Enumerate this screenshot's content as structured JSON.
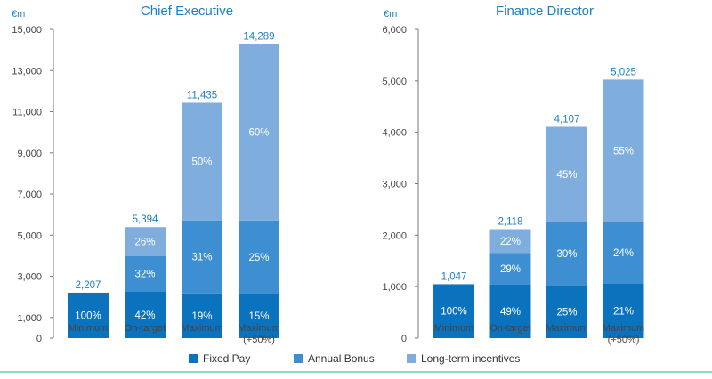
{
  "colors": {
    "fixed": "#0b72be",
    "bonus": "#3e8fd2",
    "lti": "#7eadde",
    "title": "#1b7fc3",
    "axis": "#777777",
    "rule": "#3ec3a4"
  },
  "legend": [
    {
      "label": "Fixed Pay",
      "color": "#0b72be"
    },
    {
      "label": "Annual Bonus",
      "color": "#3e8fd2"
    },
    {
      "label": "Long-term incentives",
      "color": "#7eadde"
    }
  ],
  "chart_data": [
    {
      "type": "bar",
      "stacked": true,
      "title": "Chief Executive",
      "unit": "€m",
      "ylim": [
        0,
        15000
      ],
      "yticks": [
        "0",
        "1,000",
        "3,000",
        "5,000",
        "7,000",
        "9,000",
        "11,000",
        "13,000",
        "15,000"
      ],
      "ytick_values": [
        0,
        1000,
        3000,
        5000,
        7000,
        9000,
        11000,
        13000,
        15000
      ],
      "categories": [
        {
          "line1": "Minimum",
          "line2": ""
        },
        {
          "line1": "On-target",
          "line2": ""
        },
        {
          "line1": "Maximum",
          "line2": ""
        },
        {
          "line1": "Maximum",
          "line2": "(+50%)"
        }
      ],
      "totals": [
        "2,207",
        "5,394",
        "11,435",
        "14,289"
      ],
      "total_values": [
        2207,
        5394,
        11435,
        14289
      ],
      "series": [
        {
          "name": "Fixed Pay",
          "values": [
            2207,
            2265,
            2173,
            2143
          ],
          "labels": [
            "100%",
            "42%",
            "19%",
            "15%"
          ]
        },
        {
          "name": "Annual Bonus",
          "values": [
            0,
            1726,
            3545,
            3572
          ],
          "labels": [
            "",
            "32%",
            "31%",
            "25%"
          ]
        },
        {
          "name": "Long-term incentives",
          "values": [
            0,
            1403,
            5717,
            8574
          ],
          "labels": [
            "",
            "26%",
            "50%",
            "60%"
          ]
        }
      ]
    },
    {
      "type": "bar",
      "stacked": true,
      "title": "Finance Director",
      "unit": "€m",
      "ylim": [
        0,
        6000
      ],
      "yticks": [
        "0",
        "1,000",
        "2,000",
        "3,000",
        "4,000",
        "5,000",
        "6,000"
      ],
      "ytick_values": [
        0,
        1000,
        2000,
        3000,
        4000,
        5000,
        6000
      ],
      "categories": [
        {
          "line1": "Minimum",
          "line2": ""
        },
        {
          "line1": "On-target",
          "line2": ""
        },
        {
          "line1": "Maximum",
          "line2": ""
        },
        {
          "line1": "Maximum",
          "line2": "(+50%)"
        }
      ],
      "totals": [
        "1,047",
        "2,118",
        "4,107",
        "5,025"
      ],
      "total_values": [
        1047,
        2118,
        4107,
        5025
      ],
      "series": [
        {
          "name": "Fixed Pay",
          "values": [
            1047,
            1038,
            1027,
            1055
          ],
          "labels": [
            "100%",
            "49%",
            "25%",
            "21%"
          ]
        },
        {
          "name": "Annual Bonus",
          "values": [
            0,
            614,
            1232,
            1206
          ],
          "labels": [
            "",
            "29%",
            "30%",
            "24%"
          ]
        },
        {
          "name": "Long-term incentives",
          "values": [
            0,
            466,
            1848,
            2764
          ],
          "labels": [
            "",
            "22%",
            "45%",
            "55%"
          ]
        }
      ]
    }
  ]
}
